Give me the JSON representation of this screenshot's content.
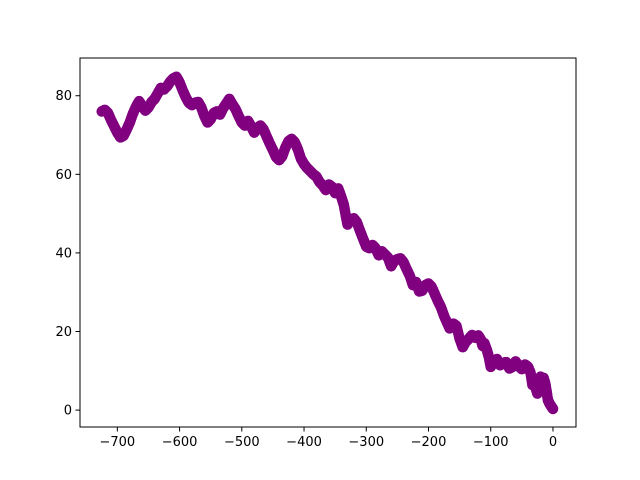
{
  "chart_data": {
    "type": "scatter",
    "title": "",
    "xlabel": "",
    "ylabel": "",
    "xlim": [
      -760,
      37
    ],
    "ylim": [
      -4.3,
      89.6
    ],
    "xticks": [
      -700,
      -600,
      -500,
      -400,
      -300,
      -200,
      -100,
      0
    ],
    "yticks": [
      0,
      20,
      40,
      60,
      80
    ],
    "xtick_labels": [
      "−700",
      "−600",
      "−500",
      "−400",
      "−300",
      "−200",
      "−100",
      "0"
    ],
    "ytick_labels": [
      "0",
      "20",
      "40",
      "60",
      "80"
    ],
    "grid": false,
    "legend": "none",
    "color": "#800080",
    "series": [
      {
        "x": [
          0,
          -2,
          -5,
          -8,
          -10,
          -12,
          -15,
          -18,
          -20,
          -22,
          -25,
          -28,
          -30,
          -33,
          -36,
          -40,
          -45,
          -50,
          -55,
          -60,
          -65,
          -70,
          -75,
          -80,
          -85,
          -90,
          -95,
          -100,
          -103,
          -106,
          -110,
          -113,
          -116,
          -120,
          -125,
          -130,
          -135,
          -140,
          -145,
          -150,
          -155,
          -160,
          -163,
          -166,
          -170,
          -175,
          -180,
          -185,
          -190,
          -195,
          -200,
          -205,
          -210,
          -215,
          -220,
          -225,
          -230,
          -235,
          -240,
          -245,
          -250,
          -255,
          -260,
          -265,
          -270,
          -275,
          -280,
          -285,
          -290,
          -295,
          -300,
          -305,
          -310,
          -315,
          -320,
          -325,
          -330,
          -333,
          -336,
          -340,
          -345,
          -350,
          -355,
          -360,
          -365,
          -370,
          -375,
          -380,
          -385,
          -390,
          -395,
          -400,
          -405,
          -410,
          -415,
          -420,
          -425,
          -430,
          -435,
          -440,
          -445,
          -450,
          -455,
          -460,
          -465,
          -470,
          -475,
          -480,
          -485,
          -490,
          -495,
          -500,
          -505,
          -510,
          -515,
          -520,
          -525,
          -530,
          -535,
          -540,
          -545,
          -550,
          -555,
          -560,
          -565,
          -570,
          -575,
          -580,
          -585,
          -590,
          -595,
          -600,
          -605,
          -610,
          -615,
          -620,
          -625,
          -630,
          -635,
          -640,
          -645,
          -650,
          -655,
          -660,
          -665,
          -670,
          -675,
          -680,
          -685,
          -690,
          -695,
          -700,
          -705,
          -710,
          -715,
          -720,
          -725
        ],
        "y": [
          0.3,
          0.8,
          1.5,
          2.5,
          4.5,
          6.5,
          8.2,
          7.6,
          8.5,
          6.0,
          4.2,
          5.8,
          8.0,
          6.4,
          9.5,
          11.0,
          11.6,
          10.4,
          11.2,
          12.4,
          11.0,
          10.6,
          12.2,
          12.0,
          11.4,
          13.0,
          12.4,
          11.0,
          13.5,
          15.2,
          17.0,
          16.3,
          18.0,
          19.0,
          18.4,
          19.1,
          18.2,
          17.4,
          16.0,
          18.2,
          21.4,
          22.0,
          21.6,
          20.8,
          22.2,
          24.0,
          26.2,
          27.8,
          29.6,
          31.4,
          32.2,
          31.8,
          30.4,
          30.2,
          32.6,
          31.8,
          34.2,
          35.8,
          37.6,
          38.6,
          38.4,
          38.0,
          36.6,
          38.8,
          39.6,
          40.4,
          39.4,
          41.2,
          42.0,
          41.2,
          41.6,
          43.6,
          45.6,
          47.8,
          48.8,
          48.4,
          47.2,
          49.6,
          52.2,
          54.2,
          56.4,
          55.2,
          56.8,
          57.4,
          56.0,
          57.2,
          58.0,
          59.4,
          60.0,
          60.8,
          61.6,
          62.6,
          64.0,
          66.4,
          68.2,
          69.0,
          68.4,
          66.8,
          64.6,
          63.6,
          64.4,
          66.2,
          67.8,
          69.6,
          71.4,
          72.4,
          71.8,
          70.6,
          72.2,
          73.6,
          72.4,
          73.2,
          74.8,
          76.6,
          77.8,
          79.2,
          78.0,
          76.8,
          75.2,
          76.0,
          75.6,
          74.0,
          73.2,
          74.8,
          77.0,
          78.4,
          78.2,
          77.6,
          78.2,
          79.6,
          81.4,
          83.4,
          84.8,
          84.4,
          83.6,
          82.4,
          81.6,
          82.0,
          80.6,
          79.2,
          78.4,
          77.0,
          76.2,
          77.4,
          78.6,
          77.2,
          75.4,
          73.2,
          71.4,
          69.8,
          69.4,
          70.6,
          72.2,
          73.8,
          75.6,
          76.4,
          76.0
        ]
      }
    ]
  }
}
